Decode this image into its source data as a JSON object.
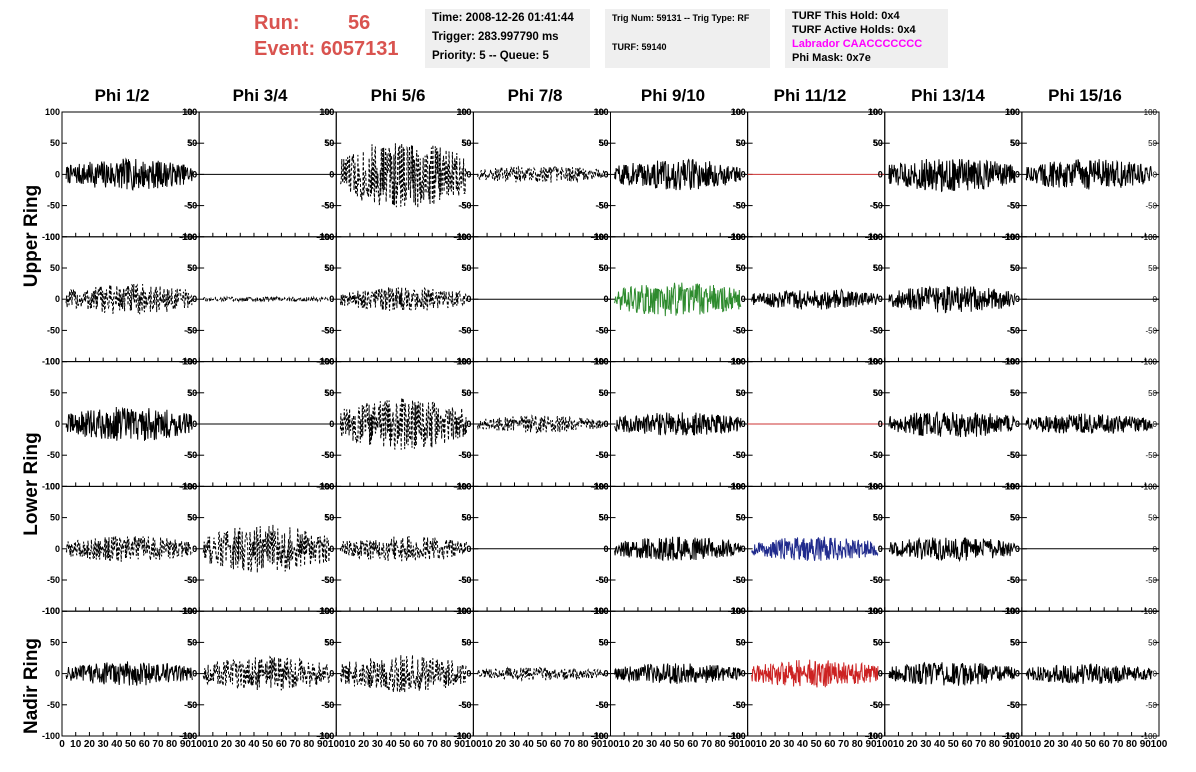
{
  "header": {
    "run_label": "Run:",
    "run_value": "56",
    "event_label": "Event:",
    "event_value": "6057131",
    "time": "Time: 2008-12-26 01:41:44",
    "trigger": "Trigger: 283.997790 ms",
    "priority": "Priority: 5 -- Queue: 5",
    "trig_num": "Trig Num: 59131 -- Trig Type: RF",
    "turf": "TURF: 59140",
    "turf_this_hold": "TURF This Hold: 0x4",
    "turf_active_holds": "TURF Active Holds: 0x4",
    "labrador": "Labrador CAACCCCCCC",
    "phi_mask": "Phi Mask: 0x7e"
  },
  "columns": [
    "Phi 1/2",
    "Phi 3/4",
    "Phi 5/6",
    "Phi 7/8",
    "Phi 9/10",
    "Phi 11/12",
    "Phi 13/14",
    "Phi 15/16"
  ],
  "rings": [
    "Upper Ring",
    "Lower Ring",
    "Nadir Ring"
  ],
  "colors": {
    "black": "#000000",
    "green": "#2e8b2e",
    "blue": "#1f2a8c",
    "red": "#cc2222",
    "flat_red": "#cc3333"
  },
  "chart_data": {
    "type": "line",
    "xlim": [
      0,
      100
    ],
    "ylim": [
      -100,
      100
    ],
    "x_ticks": [
      0,
      10,
      20,
      30,
      40,
      50,
      60,
      70,
      80,
      90,
      100
    ],
    "y_ticks": [
      100,
      50,
      0,
      -50,
      -100
    ],
    "panels": [
      [
        {
          "style": "solid",
          "color": "black",
          "amp": 18
        },
        {
          "style": "flat",
          "color": "black",
          "amp": 0
        },
        {
          "style": "dashed",
          "color": "black",
          "amp": 40
        },
        {
          "style": "dashed",
          "color": "black",
          "amp": 10
        },
        {
          "style": "solid",
          "color": "black",
          "amp": 18
        },
        {
          "style": "flat",
          "color": "flat_red",
          "amp": 0
        },
        {
          "style": "solid",
          "color": "black",
          "amp": 20
        },
        {
          "style": "solid",
          "color": "black",
          "amp": 18
        }
      ],
      [
        {
          "style": "dashed",
          "color": "black",
          "amp": 18
        },
        {
          "style": "dashed",
          "color": "black",
          "amp": 3
        },
        {
          "style": "dashed",
          "color": "black",
          "amp": 14
        },
        {
          "style": "flat",
          "color": "black",
          "amp": 0
        },
        {
          "style": "solid",
          "color": "green",
          "amp": 20
        },
        {
          "style": "solid",
          "color": "black",
          "amp": 12
        },
        {
          "style": "solid",
          "color": "black",
          "amp": 16
        },
        {
          "style": "flat",
          "color": "black",
          "amp": 0
        }
      ],
      [
        {
          "style": "solid",
          "color": "black",
          "amp": 20
        },
        {
          "style": "flat",
          "color": "black",
          "amp": 0
        },
        {
          "style": "dashed",
          "color": "black",
          "amp": 30
        },
        {
          "style": "dashed",
          "color": "black",
          "amp": 10
        },
        {
          "style": "solid",
          "color": "black",
          "amp": 14
        },
        {
          "style": "flat",
          "color": "flat_red",
          "amp": 0
        },
        {
          "style": "solid",
          "color": "black",
          "amp": 16
        },
        {
          "style": "solid",
          "color": "black",
          "amp": 12
        }
      ],
      [
        {
          "style": "dashed",
          "color": "black",
          "amp": 15
        },
        {
          "style": "dashed",
          "color": "black",
          "amp": 28
        },
        {
          "style": "dashed",
          "color": "black",
          "amp": 15
        },
        {
          "style": "flat",
          "color": "black",
          "amp": 0
        },
        {
          "style": "solid",
          "color": "black",
          "amp": 14
        },
        {
          "style": "solid",
          "color": "blue",
          "amp": 14
        },
        {
          "style": "solid",
          "color": "black",
          "amp": 14
        },
        {
          "style": "flat",
          "color": "black",
          "amp": 0
        }
      ],
      [
        {
          "style": "solid",
          "color": "black",
          "amp": 14
        },
        {
          "style": "dashed",
          "color": "black",
          "amp": 20
        },
        {
          "style": "dashed",
          "color": "black",
          "amp": 22
        },
        {
          "style": "dashed",
          "color": "black",
          "amp": 8
        },
        {
          "style": "solid",
          "color": "black",
          "amp": 12
        },
        {
          "style": "solid",
          "color": "red",
          "amp": 16
        },
        {
          "style": "solid",
          "color": "black",
          "amp": 14
        },
        {
          "style": "solid",
          "color": "black",
          "amp": 12
        }
      ]
    ]
  }
}
